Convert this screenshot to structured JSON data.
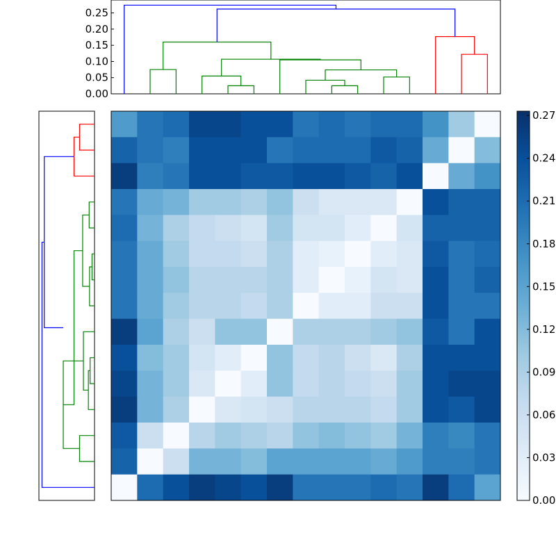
{
  "chart_data": [
    {
      "type": "dendrogram",
      "orientation": "top",
      "yticks": [
        "0.00",
        "0.05",
        "0.10",
        "0.15",
        "0.20",
        "0.25"
      ],
      "ylim": [
        0,
        0.29
      ],
      "link_colors": {
        "blue": "#0000ff",
        "green": "#008000",
        "red": "#ff0000"
      },
      "links": [
        {
          "color": "green",
          "x": [
            1.5,
            1.5,
            2.5,
            2.5
          ],
          "h": [
            0.0,
            0.075,
            0.075,
            0.0
          ]
        },
        {
          "color": "green",
          "x": [
            4.5,
            4.5,
            5.5,
            5.5
          ],
          "h": [
            0.0,
            0.025,
            0.025,
            0.0
          ]
        },
        {
          "color": "green",
          "x": [
            3.5,
            3.5,
            5.0,
            5.0
          ],
          "h": [
            0.0,
            0.055,
            0.055,
            0.025
          ]
        },
        {
          "color": "green",
          "x": [
            8.5,
            8.5,
            9.5,
            9.5
          ],
          "h": [
            0.0,
            0.025,
            0.025,
            0.0
          ]
        },
        {
          "color": "green",
          "x": [
            7.5,
            7.5,
            9.0,
            9.0
          ],
          "h": [
            0.0,
            0.042,
            0.042,
            0.025
          ]
        },
        {
          "color": "green",
          "x": [
            10.5,
            10.5,
            11.5,
            11.5
          ],
          "h": [
            0.0,
            0.052,
            0.052,
            0.0
          ]
        },
        {
          "color": "green",
          "x": [
            8.25,
            8.25,
            11.0,
            11.0
          ],
          "h": [
            0.042,
            0.074,
            0.074,
            0.052
          ]
        },
        {
          "color": "green",
          "x": [
            6.5,
            6.5,
            9.625,
            9.625
          ],
          "h": [
            0.0,
            0.105,
            0.105,
            0.074
          ]
        },
        {
          "color": "green",
          "x": [
            4.25,
            4.25,
            8.0625,
            8.0625
          ],
          "h": [
            0.055,
            0.107,
            0.107,
            0.105
          ]
        },
        {
          "color": "green",
          "x": [
            2.0,
            2.0,
            6.15625,
            6.15625
          ],
          "h": [
            0.075,
            0.16,
            0.16,
            0.107
          ]
        },
        {
          "color": "red",
          "x": [
            13.5,
            13.5,
            14.5,
            14.5
          ],
          "h": [
            0.0,
            0.122,
            0.122,
            0.0
          ]
        },
        {
          "color": "red",
          "x": [
            12.5,
            12.5,
            14.0,
            14.0
          ],
          "h": [
            0.0,
            0.177,
            0.177,
            0.122
          ]
        },
        {
          "color": "blue",
          "x": [
            4.078,
            4.078,
            13.25,
            13.25
          ],
          "h": [
            0.16,
            0.262,
            0.262,
            0.177
          ]
        },
        {
          "color": "blue",
          "x": [
            0.5,
            0.5,
            8.664,
            8.664
          ],
          "h": [
            0.0,
            0.274,
            0.274,
            0.262
          ]
        }
      ]
    },
    {
      "type": "dendrogram",
      "orientation": "left",
      "xlim": [
        0,
        0.29
      ],
      "link_colors": {
        "blue": "#0000ff",
        "green": "#008000",
        "red": "#ff0000"
      },
      "links": [
        {
          "color": "red",
          "x": [
            0.5,
            0.5,
            1.5,
            1.5
          ],
          "h": [
            0.0,
            0.078,
            0.078,
            0.0
          ]
        },
        {
          "color": "red",
          "x": [
            1.0,
            1.0,
            2.5,
            2.5
          ],
          "h": [
            0.078,
            0.107,
            0.107,
            0.0
          ]
        },
        {
          "color": "green",
          "x": [
            3.5,
            3.5,
            4.5,
            4.5
          ],
          "h": [
            0.0,
            0.028,
            0.028,
            0.0
          ]
        },
        {
          "color": "green",
          "x": [
            5.5,
            5.5,
            6.5,
            6.5
          ],
          "h": [
            0.0,
            0.013,
            0.013,
            0.0
          ]
        },
        {
          "color": "green",
          "x": [
            6.0,
            6.0,
            7.5,
            7.5
          ],
          "h": [
            0.013,
            0.026,
            0.026,
            0.0
          ]
        },
        {
          "color": "green",
          "x": [
            4.0,
            4.0,
            6.75,
            6.75
          ],
          "h": [
            0.028,
            0.062,
            0.062,
            0.026
          ]
        },
        {
          "color": "green",
          "x": [
            9.5,
            9.5,
            10.5,
            10.5
          ],
          "h": [
            0.0,
            0.023,
            0.023,
            0.0
          ]
        },
        {
          "color": "green",
          "x": [
            10.0,
            10.0,
            11.5,
            11.5
          ],
          "h": [
            0.023,
            0.032,
            0.032,
            0.0
          ]
        },
        {
          "color": "green",
          "x": [
            8.5,
            8.5,
            10.75,
            10.75
          ],
          "h": [
            0.0,
            0.058,
            0.058,
            0.032
          ]
        },
        {
          "color": "green",
          "x": [
            12.5,
            12.5,
            13.5,
            13.5
          ],
          "h": [
            0.0,
            0.078,
            0.078,
            0.0
          ]
        },
        {
          "color": "green",
          "x": [
            9.625,
            9.625,
            13.0,
            13.0
          ],
          "h": [
            0.058,
            0.163,
            0.163,
            0.078
          ]
        },
        {
          "color": "green",
          "x": [
            5.375,
            5.375,
            11.3125,
            11.3125
          ],
          "h": [
            0.062,
            0.107,
            0.107,
            0.163
          ]
        },
        {
          "color": "blue",
          "x": [
            1.75,
            1.75,
            8.344,
            8.344
          ],
          "h": [
            0.107,
            0.262,
            0.262,
            0.163
          ]
        },
        {
          "color": "blue",
          "x": [
            5.047,
            5.047,
            14.5,
            14.5
          ],
          "h": [
            0.262,
            0.274,
            0.274,
            0.0
          ]
        }
      ]
    },
    {
      "type": "heatmap",
      "rows": 15,
      "cols": 15,
      "values": [
        [
          0.16,
          0.2,
          0.21,
          0.25,
          0.25,
          0.24,
          0.24,
          0.2,
          0.21,
          0.2,
          0.21,
          0.21,
          0.17,
          0.1,
          0.0
        ],
        [
          0.22,
          0.2,
          0.19,
          0.24,
          0.24,
          0.24,
          0.2,
          0.21,
          0.21,
          0.21,
          0.23,
          0.22,
          0.14,
          0.0,
          0.12
        ],
        [
          0.26,
          0.19,
          0.2,
          0.24,
          0.24,
          0.23,
          0.23,
          0.24,
          0.24,
          0.23,
          0.22,
          0.24,
          0.0,
          0.14,
          0.17
        ],
        [
          0.2,
          0.14,
          0.13,
          0.1,
          0.1,
          0.09,
          0.11,
          0.06,
          0.04,
          0.04,
          0.04,
          0.0,
          0.24,
          0.22,
          0.22
        ],
        [
          0.21,
          0.13,
          0.09,
          0.07,
          0.06,
          0.05,
          0.1,
          0.05,
          0.05,
          0.03,
          0.0,
          0.05,
          0.22,
          0.22,
          0.22
        ],
        [
          0.2,
          0.14,
          0.1,
          0.07,
          0.07,
          0.06,
          0.09,
          0.03,
          0.02,
          0.0,
          0.03,
          0.04,
          0.23,
          0.2,
          0.21
        ],
        [
          0.2,
          0.14,
          0.11,
          0.08,
          0.08,
          0.08,
          0.09,
          0.03,
          0.0,
          0.02,
          0.05,
          0.04,
          0.24,
          0.2,
          0.22
        ],
        [
          0.2,
          0.14,
          0.1,
          0.08,
          0.08,
          0.07,
          0.09,
          0.0,
          0.03,
          0.03,
          0.06,
          0.06,
          0.24,
          0.2,
          0.2
        ],
        [
          0.26,
          0.15,
          0.09,
          0.06,
          0.11,
          0.11,
          0.0,
          0.09,
          0.09,
          0.09,
          0.1,
          0.11,
          0.23,
          0.2,
          0.24
        ],
        [
          0.24,
          0.12,
          0.1,
          0.05,
          0.03,
          0.0,
          0.11,
          0.07,
          0.08,
          0.06,
          0.04,
          0.09,
          0.24,
          0.24,
          0.24
        ],
        [
          0.25,
          0.13,
          0.1,
          0.04,
          0.0,
          0.03,
          0.11,
          0.07,
          0.08,
          0.07,
          0.06,
          0.1,
          0.24,
          0.25,
          0.25
        ],
        [
          0.26,
          0.13,
          0.09,
          0.0,
          0.04,
          0.05,
          0.06,
          0.08,
          0.08,
          0.08,
          0.07,
          0.1,
          0.24,
          0.23,
          0.25
        ],
        [
          0.23,
          0.06,
          0.0,
          0.08,
          0.1,
          0.09,
          0.08,
          0.11,
          0.12,
          0.11,
          0.1,
          0.13,
          0.19,
          0.18,
          0.2
        ],
        [
          0.22,
          0.0,
          0.06,
          0.13,
          0.13,
          0.12,
          0.15,
          0.15,
          0.15,
          0.15,
          0.14,
          0.16,
          0.19,
          0.19,
          0.2
        ],
        [
          0.0,
          0.21,
          0.24,
          0.26,
          0.25,
          0.24,
          0.26,
          0.2,
          0.2,
          0.2,
          0.21,
          0.2,
          0.26,
          0.21,
          0.15
        ]
      ]
    },
    {
      "type": "colorbar",
      "vmin": 0.0,
      "vmax": 0.273,
      "tick_values": [
        0.0,
        0.03,
        0.06,
        0.09,
        0.12,
        0.15,
        0.18,
        0.21,
        0.24,
        0.27
      ],
      "tick_labels": [
        "0.00",
        "0.03",
        "0.06",
        "0.09",
        "0.12",
        "0.15",
        "0.18",
        "0.21",
        "0.24",
        "0.27"
      ],
      "colormap": "Blues",
      "colormap_stops": [
        "#f7fbff",
        "#deebf7",
        "#c6dbef",
        "#9ecae1",
        "#6baed6",
        "#4292c6",
        "#2171b5",
        "#08519c",
        "#08306b"
      ]
    }
  ]
}
